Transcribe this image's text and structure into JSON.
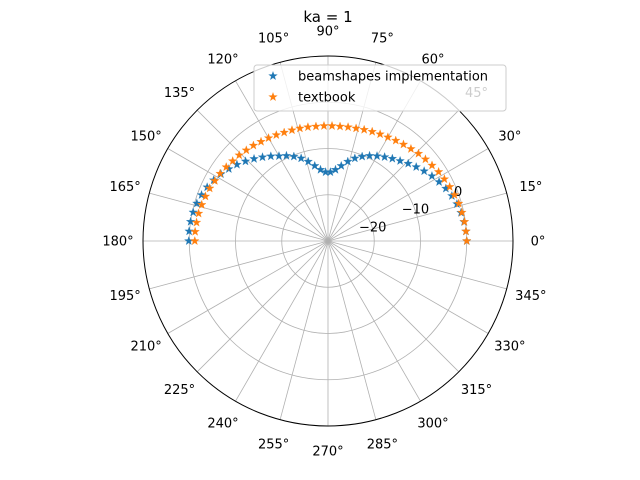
{
  "chart_data": {
    "type": "scatter",
    "projection": "polar",
    "title": "ka = 1",
    "theta_unit": "degrees",
    "theta_ticks": [
      0,
      15,
      30,
      45,
      60,
      75,
      90,
      105,
      120,
      135,
      150,
      165,
      180,
      195,
      210,
      225,
      240,
      255,
      270,
      285,
      300,
      315,
      330,
      345
    ],
    "theta_tick_labels": [
      "0°",
      "15°",
      "30°",
      "45°",
      "60°",
      "75°",
      "90°",
      "105°",
      "120°",
      "135°",
      "150°",
      "165°",
      "180°",
      "195°",
      "210°",
      "225°",
      "240°",
      "255°",
      "270°",
      "285°",
      "300°",
      "315°",
      "330°",
      "345°"
    ],
    "r_ticks": [
      -20,
      -10,
      0
    ],
    "r_tick_labels": [
      "−20",
      "−10",
      "0"
    ],
    "rlim": [
      -30,
      10
    ],
    "grid": true,
    "legend_position": "top-right",
    "series": [
      {
        "name": "beamshapes implementation",
        "color": "#1f77b4",
        "marker": "star",
        "theta": [
          0,
          4,
          8,
          12,
          16,
          20,
          24,
          28,
          32,
          36,
          40,
          44,
          48,
          52,
          56,
          60,
          64,
          68,
          72,
          76,
          80,
          84,
          88,
          92,
          96,
          100,
          104,
          108,
          112,
          116,
          120,
          124,
          128,
          132,
          136,
          140,
          144,
          148,
          152,
          156,
          160,
          164,
          168,
          172,
          176,
          180
        ],
        "r": [
          0.0,
          -0.1,
          -0.3,
          -0.6,
          -1.0,
          -1.5,
          -2.1,
          -2.8,
          -3.5,
          -4.3,
          -5.1,
          -5.9,
          -6.7,
          -7.4,
          -8.1,
          -8.8,
          -9.5,
          -10.3,
          -11.2,
          -12.3,
          -13.5,
          -14.5,
          -15.1,
          -15.1,
          -14.5,
          -13.5,
          -12.3,
          -11.2,
          -10.3,
          -9.5,
          -8.8,
          -7.9,
          -7.0,
          -6.1,
          -5.2,
          -4.3,
          -3.5,
          -2.7,
          -2.0,
          -1.4,
          -0.9,
          -0.5,
          -0.2,
          0.0,
          0.1,
          0.1
        ]
      },
      {
        "name": "textbook",
        "color": "#ff7f0e",
        "marker": "star",
        "theta": [
          0,
          4,
          8,
          12,
          16,
          20,
          24,
          28,
          32,
          36,
          40,
          44,
          48,
          52,
          56,
          60,
          64,
          68,
          72,
          76,
          80,
          84,
          88,
          92,
          96,
          100,
          104,
          108,
          112,
          116,
          120,
          124,
          128,
          132,
          136,
          140,
          144,
          148,
          152,
          156,
          160,
          164,
          168,
          172,
          176,
          180
        ],
        "r": [
          0.0,
          -0.1,
          -0.2,
          -0.4,
          -0.6,
          -0.9,
          -1.2,
          -1.5,
          -1.8,
          -2.2,
          -2.5,
          -2.8,
          -3.2,
          -3.5,
          -3.8,
          -4.1,
          -4.3,
          -4.5,
          -4.7,
          -4.9,
          -5.0,
          -5.1,
          -5.1,
          -5.1,
          -5.1,
          -5.0,
          -4.9,
          -4.8,
          -4.7,
          -4.5,
          -4.3,
          -4.1,
          -3.8,
          -3.6,
          -3.3,
          -3.1,
          -2.8,
          -2.5,
          -2.3,
          -2.0,
          -1.8,
          -1.6,
          -1.4,
          -1.3,
          -1.2,
          -1.2
        ]
      }
    ]
  }
}
